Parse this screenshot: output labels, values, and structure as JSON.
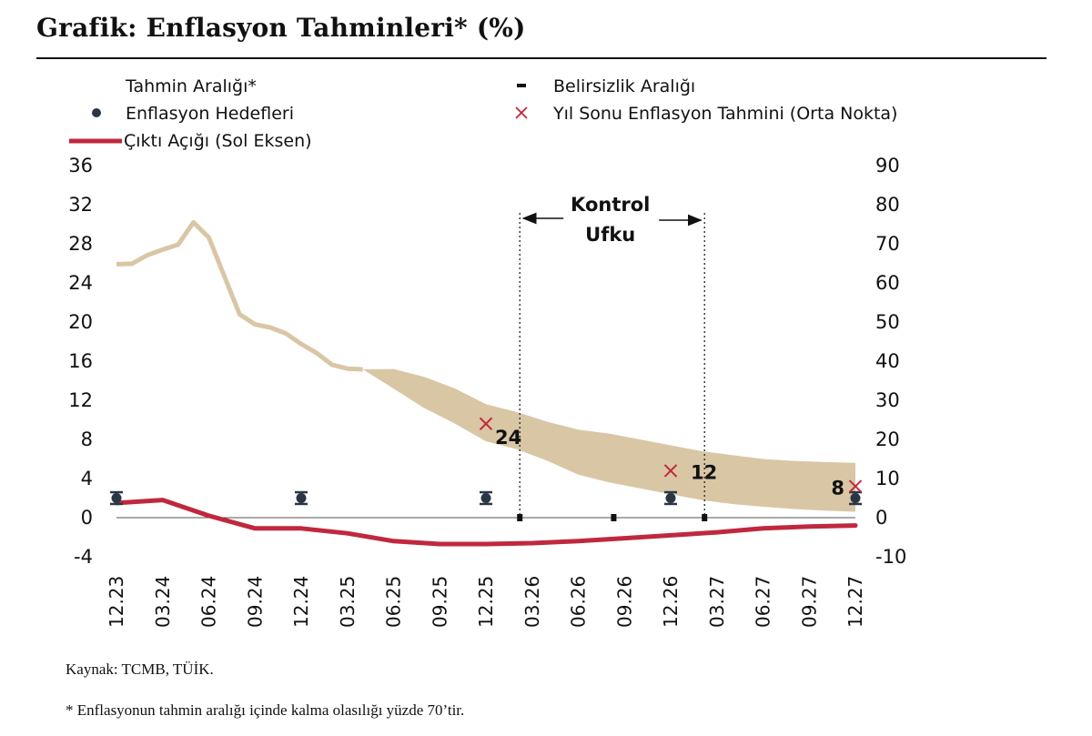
{
  "page": {
    "title": "Grafik: Enflasyon Tahminleri* (%)",
    "source": "Kaynak: TCMB, TÜİK.",
    "footnote": "* Enflasyonun tahmin aralığı içinde kalma olasılığı yüzde 70’tir."
  },
  "chart_data": {
    "type": "line",
    "title": "Grafik: Enflasyon Tahminleri* (%)",
    "colors": {
      "fan": "#d9c6a5",
      "output_gap": "#c0283d",
      "target": "#2b3645",
      "forecast_x": "#c0283d",
      "axis": "#555555",
      "text": "#111111"
    },
    "x_axis": {
      "min": 0,
      "max": 48,
      "ticks": [
        {
          "x": 0,
          "label": "12.23"
        },
        {
          "x": 3,
          "label": "03.24"
        },
        {
          "x": 6,
          "label": "06.24"
        },
        {
          "x": 9,
          "label": "09.24"
        },
        {
          "x": 12,
          "label": "12.24"
        },
        {
          "x": 15,
          "label": "03.25"
        },
        {
          "x": 18,
          "label": "06.25"
        },
        {
          "x": 21,
          "label": "09.25"
        },
        {
          "x": 24,
          "label": "12.25"
        },
        {
          "x": 27,
          "label": "03.26"
        },
        {
          "x": 30,
          "label": "06.26"
        },
        {
          "x": 33,
          "label": "09.26"
        },
        {
          "x": 36,
          "label": "12.26"
        },
        {
          "x": 39,
          "label": "03.27"
        },
        {
          "x": 42,
          "label": "06.27"
        },
        {
          "x": 45,
          "label": "09.27"
        },
        {
          "x": 48,
          "label": "12.27"
        }
      ]
    },
    "left_axis": {
      "ylim": [
        -4,
        36
      ],
      "ticks": [
        {
          "v": 36,
          "label": "36"
        },
        {
          "v": 32,
          "label": "32"
        },
        {
          "v": 28,
          "label": "28"
        },
        {
          "v": 24,
          "label": "24"
        },
        {
          "v": 20,
          "label": "20"
        },
        {
          "v": 16,
          "label": "16"
        },
        {
          "v": 12,
          "label": "12"
        },
        {
          "v": 8,
          "label": "8"
        },
        {
          "v": 4,
          "label": "4"
        },
        {
          "v": 0,
          "label": "0"
        },
        {
          "v": -4,
          "label": "-4"
        }
      ]
    },
    "right_axis": {
      "ylim": [
        -10,
        90
      ],
      "ticks": [
        {
          "v": 90,
          "label": "90"
        },
        {
          "v": 80,
          "label": "80"
        },
        {
          "v": 70,
          "label": "70"
        },
        {
          "v": 60,
          "label": "60"
        },
        {
          "v": 50,
          "label": "50"
        },
        {
          "v": 40,
          "label": "40"
        },
        {
          "v": 30,
          "label": "30"
        },
        {
          "v": 20,
          "label": "20"
        },
        {
          "v": 10,
          "label": "10"
        },
        {
          "v": 0,
          "label": "0"
        },
        {
          "v": -10,
          "label": "-10"
        }
      ]
    },
    "legend": [
      {
        "key": "fan",
        "label": "Tahmin Aralığı*"
      },
      {
        "key": "target",
        "label": "Enflasyon Hedefleri"
      },
      {
        "key": "output_gap",
        "label": "Çıktı Açığı (Sol Eksen)"
      },
      {
        "key": "uncertainty",
        "label": "Belirsizlik Aralığı"
      },
      {
        "key": "forecast_x",
        "label": "Yıl Sonu Enflasyon Tahmini (Orta Nokta)"
      }
    ],
    "actual_inflation_right_axis": {
      "name": "Tahmin Aralığı* (gerçekleşen)",
      "points": [
        [
          0,
          64.8
        ],
        [
          1,
          64.9
        ],
        [
          2,
          67.1
        ],
        [
          3,
          68.5
        ],
        [
          4,
          69.8
        ],
        [
          5,
          75.5
        ],
        [
          6,
          71.6
        ],
        [
          7,
          61.8
        ],
        [
          8,
          51.97
        ],
        [
          9,
          49.4
        ],
        [
          10,
          48.6
        ],
        [
          11,
          47.1
        ],
        [
          12,
          44.4
        ],
        [
          13,
          42.1
        ],
        [
          14,
          39.1
        ],
        [
          15,
          38.1
        ],
        [
          16,
          37.9
        ]
      ]
    },
    "fan_band_right_axis": {
      "name": "Tahmin Aralığı*",
      "upper": [
        [
          16,
          37.9
        ],
        [
          18,
          38.0
        ],
        [
          20,
          36.0
        ],
        [
          22,
          33.0
        ],
        [
          24,
          29.0
        ],
        [
          26,
          27.0
        ],
        [
          28,
          24.5
        ],
        [
          30,
          22.5
        ],
        [
          32,
          21.5
        ],
        [
          34,
          20.0
        ],
        [
          36,
          18.5
        ],
        [
          38,
          17.0
        ],
        [
          40,
          16.0
        ],
        [
          42,
          15.0
        ],
        [
          44,
          14.5
        ],
        [
          46,
          14.2
        ],
        [
          48,
          14.0
        ]
      ],
      "lower": [
        [
          16,
          37.9
        ],
        [
          18,
          33.0
        ],
        [
          20,
          28.0
        ],
        [
          22,
          24.0
        ],
        [
          24,
          19.5
        ],
        [
          26,
          17.5
        ],
        [
          28,
          14.5
        ],
        [
          30,
          11.0
        ],
        [
          32,
          9.0
        ],
        [
          34,
          7.5
        ],
        [
          36,
          6.0
        ],
        [
          38,
          4.5
        ],
        [
          40,
          3.5
        ],
        [
          42,
          2.8
        ],
        [
          44,
          2.2
        ],
        [
          46,
          1.8
        ],
        [
          48,
          1.5
        ]
      ]
    },
    "output_gap_left_axis": {
      "name": "Çıktı Açığı (Sol Eksen)",
      "points": [
        [
          0,
          1.5
        ],
        [
          3,
          1.8
        ],
        [
          6,
          0.2
        ],
        [
          9,
          -1.1
        ],
        [
          12,
          -1.1
        ],
        [
          15,
          -1.6
        ],
        [
          18,
          -2.4
        ],
        [
          21,
          -2.7
        ],
        [
          24,
          -2.7
        ],
        [
          27,
          -2.6
        ],
        [
          30,
          -2.4
        ],
        [
          33,
          -2.1
        ],
        [
          36,
          -1.8
        ],
        [
          39,
          -1.5
        ],
        [
          42,
          -1.1
        ],
        [
          45,
          -0.9
        ],
        [
          48,
          -0.8
        ]
      ]
    },
    "inflation_targets_left_axis": {
      "name": "Enflasyon Hedefleri",
      "points": [
        [
          0,
          2.0
        ],
        [
          12,
          2.0
        ],
        [
          24,
          2.0
        ],
        [
          36,
          2.0
        ],
        [
          48,
          2.0
        ]
      ],
      "range": [
        1.4,
        2.6
      ]
    },
    "year_end_forecasts_left_axis": {
      "name": "Yıl Sonu Enflasyon Tahmini (Orta Nokta)",
      "points": [
        {
          "x": 24,
          "y": 9.6,
          "label": "24"
        },
        {
          "x": 36,
          "y": 4.8,
          "label": "12"
        },
        {
          "x": 48,
          "y": 3.2,
          "label": "8"
        }
      ]
    },
    "uncertainty_markers_left_axis": [
      {
        "x": 26.2,
        "y": 0
      },
      {
        "x": 32.3,
        "y": 0
      },
      {
        "x": 38.2,
        "y": 0
      }
    ],
    "control_horizon": {
      "from_x": 26.2,
      "to_x": 38.2,
      "label_line1": "Kontrol",
      "label_line2": "Ufku"
    }
  }
}
